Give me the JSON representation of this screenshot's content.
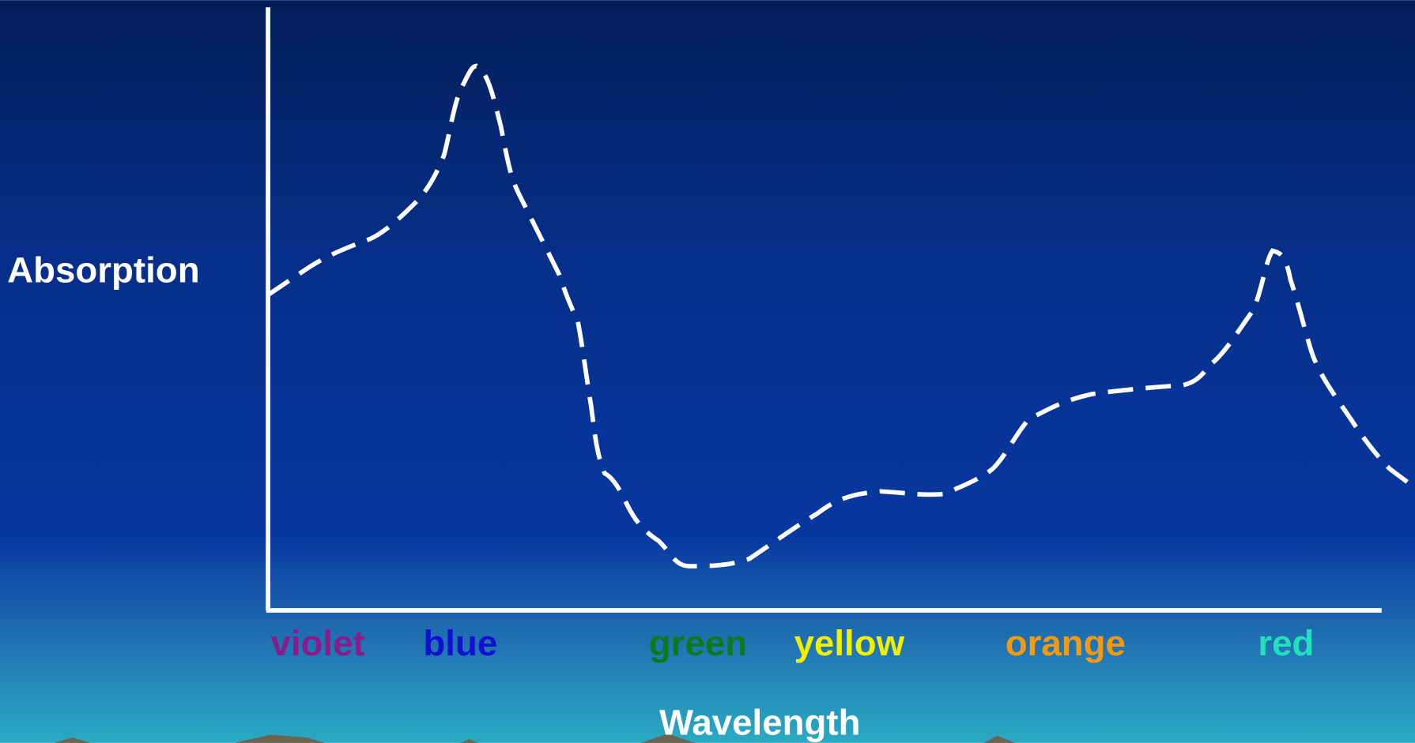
{
  "axis_labels": {
    "y": "Absorption",
    "x": "Wavelength"
  },
  "colors": [
    {
      "label": "violet",
      "color": "#8b1a8b"
    },
    {
      "label": "blue",
      "color": "#1010d0"
    },
    {
      "label": "green",
      "color": "#0b7a1e"
    },
    {
      "label": "yellow",
      "color": "#f0f000"
    },
    {
      "label": "orange",
      "color": "#f59a10"
    },
    {
      "label": "red",
      "color": "#20e0c0"
    }
  ]
}
